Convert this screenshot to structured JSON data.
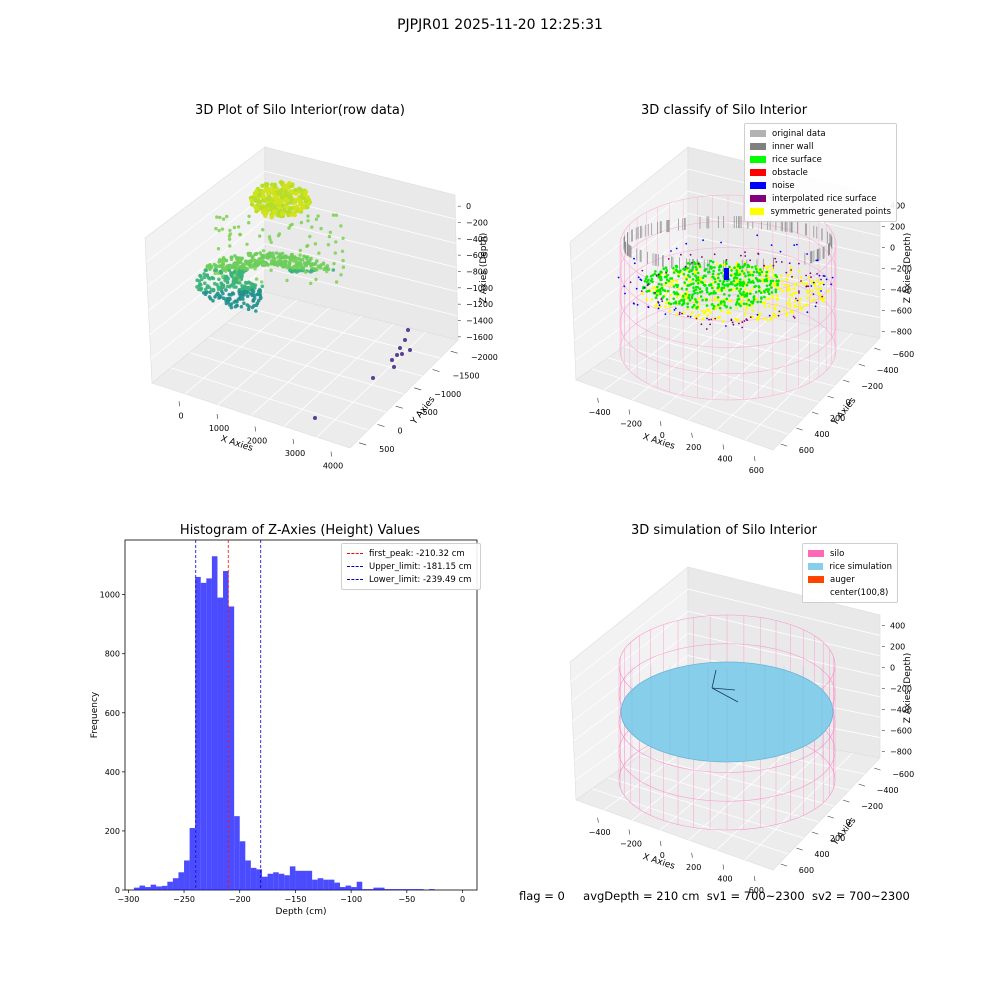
{
  "figure": {
    "title": "PJPJR01 2025-11-20 12:25:31",
    "status_line": {
      "flag": "flag = 0",
      "avg_depth": "avgDepth = 210 cm",
      "sv1": "sv1 = 700~2300",
      "sv2": "sv2 = 700~2300"
    }
  },
  "panels": {
    "raw": {
      "title": "3D Plot of Silo Interior(row data)",
      "xlabel": "X Axies",
      "ylabel": "Y Axies",
      "zlabel": "Z Axies (Depth)",
      "xticks": [
        "0",
        "1000",
        "2000",
        "3000",
        "4000"
      ],
      "yticks": [
        "500",
        "0",
        "−500",
        "−1000",
        "−1500",
        "−2000"
      ],
      "zticks": [
        "0",
        "−200",
        "−400",
        "−600",
        "−800",
        "−1000",
        "−1200",
        "−1400",
        "−1600"
      ]
    },
    "classify": {
      "title": "3D classify of Silo Interior",
      "xlabel": "X Axies",
      "ylabel": "Y Axies",
      "zlabel": "Z Axies (Depth)",
      "xticks": [
        "−400",
        "−200",
        "0",
        "200",
        "400",
        "600"
      ],
      "yticks": [
        "600",
        "400",
        "200",
        "0",
        "−200",
        "−400",
        "−600"
      ],
      "zticks": [
        "400",
        "200",
        "0",
        "−200",
        "−400",
        "−600",
        "−800"
      ],
      "legend": [
        {
          "label": "original data",
          "color": "#b2b2b2"
        },
        {
          "label": "inner wall",
          "color": "#808080"
        },
        {
          "label": "rice surface",
          "color": "#00ff00"
        },
        {
          "label": "obstacle",
          "color": "#ff0000"
        },
        {
          "label": "noise",
          "color": "#0000ff"
        },
        {
          "label": "interpolated rice surface",
          "color": "#800080"
        },
        {
          "label": "symmetric generated points",
          "color": "#ffff00"
        }
      ]
    },
    "simulation": {
      "title": "3D simulation of Silo Interior",
      "xlabel": "X Axies",
      "ylabel": "Y Axies",
      "zlabel": "Z Axies (Depth)",
      "xticks": [
        "−400",
        "−200",
        "0",
        "200",
        "400",
        "600"
      ],
      "yticks": [
        "600",
        "400",
        "200",
        "0",
        "−200",
        "−400",
        "−600"
      ],
      "zticks": [
        "400",
        "200",
        "0",
        "−200",
        "−400",
        "−600",
        "−800"
      ],
      "legend": [
        {
          "label": "silo",
          "color": "#ff69b4"
        },
        {
          "label": "rice simulation",
          "color": "#87ceeb"
        },
        {
          "label": "auger",
          "color": "#ff4500"
        },
        {
          "label": "center(100,8)",
          "color": ""
        }
      ]
    }
  },
  "chart_data": {
    "type": "bar",
    "title": "Histogram of Z-Axies (Height) Values",
    "xlabel": "Depth (cm)",
    "ylabel": "Frequency",
    "xlim": [
      -303,
      13
    ],
    "ylim": [
      0,
      1185
    ],
    "bin_width": 5,
    "xticks": [
      -300,
      -250,
      -200,
      -150,
      -100,
      -50,
      0
    ],
    "yticks": [
      0,
      200,
      400,
      600,
      800,
      1000
    ],
    "bar_color": "#0000ff",
    "bins": [
      {
        "x": -292.5,
        "y": 8
      },
      {
        "x": -287.5,
        "y": 15
      },
      {
        "x": -282.5,
        "y": 10
      },
      {
        "x": -277.5,
        "y": 18
      },
      {
        "x": -272.5,
        "y": 12
      },
      {
        "x": -267.5,
        "y": 14
      },
      {
        "x": -262.5,
        "y": 28
      },
      {
        "x": -257.5,
        "y": 40
      },
      {
        "x": -252.5,
        "y": 60
      },
      {
        "x": -247.5,
        "y": 100
      },
      {
        "x": -242.5,
        "y": 210
      },
      {
        "x": -237.5,
        "y": 1060
      },
      {
        "x": -232.5,
        "y": 1040
      },
      {
        "x": -227.5,
        "y": 1055
      },
      {
        "x": -222.5,
        "y": 1130
      },
      {
        "x": -217.5,
        "y": 990
      },
      {
        "x": -212.5,
        "y": 1080
      },
      {
        "x": -207.5,
        "y": 960
      },
      {
        "x": -202.5,
        "y": 250
      },
      {
        "x": -197.5,
        "y": 165
      },
      {
        "x": -192.5,
        "y": 100
      },
      {
        "x": -187.5,
        "y": 75
      },
      {
        "x": -182.5,
        "y": 70
      },
      {
        "x": -177.5,
        "y": 45
      },
      {
        "x": -172.5,
        "y": 55
      },
      {
        "x": -167.5,
        "y": 60
      },
      {
        "x": -162.5,
        "y": 55
      },
      {
        "x": -157.5,
        "y": 50
      },
      {
        "x": -152.5,
        "y": 80
      },
      {
        "x": -147.5,
        "y": 65
      },
      {
        "x": -142.5,
        "y": 65
      },
      {
        "x": -137.5,
        "y": 65
      },
      {
        "x": -132.5,
        "y": 35
      },
      {
        "x": -127.5,
        "y": 40
      },
      {
        "x": -122.5,
        "y": 35
      },
      {
        "x": -117.5,
        "y": 35
      },
      {
        "x": -112.5,
        "y": 25
      },
      {
        "x": -107.5,
        "y": 10
      },
      {
        "x": -102.5,
        "y": 15
      },
      {
        "x": -97.5,
        "y": 10
      },
      {
        "x": -92.5,
        "y": 28
      },
      {
        "x": -87.5,
        "y": 3
      },
      {
        "x": -82.5,
        "y": 3
      },
      {
        "x": -77.5,
        "y": 8
      },
      {
        "x": -72.5,
        "y": 8
      },
      {
        "x": -67.5,
        "y": 3
      },
      {
        "x": -62.5,
        "y": 3
      },
      {
        "x": -57.5,
        "y": 3
      },
      {
        "x": -52.5,
        "y": 3
      },
      {
        "x": -47.5,
        "y": 3
      },
      {
        "x": -42.5,
        "y": 3
      },
      {
        "x": -37.5,
        "y": 3
      },
      {
        "x": -27.5,
        "y": 3
      }
    ],
    "vlines": [
      {
        "x": -210.32,
        "color": "#ff0000",
        "label": "first_peak: -210.32 cm"
      },
      {
        "x": -181.15,
        "color": "#0000cc",
        "label": "Upper_limit: -181.15 cm"
      },
      {
        "x": -239.49,
        "color": "#0000cc",
        "label": "Lower_limit: -239.49 cm"
      }
    ],
    "legend_position": "upper right"
  }
}
